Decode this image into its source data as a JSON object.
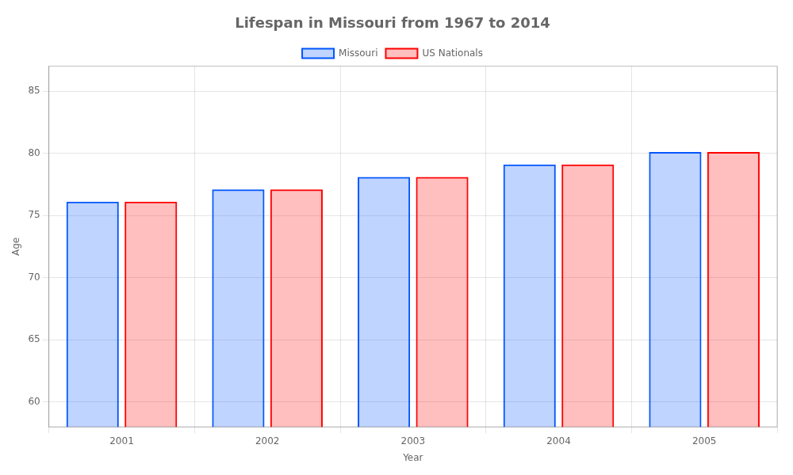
{
  "chart_data": {
    "type": "bar",
    "title": "Lifespan in Missouri from 1967 to 2014",
    "xlabel": "Year",
    "ylabel": "Age",
    "categories": [
      "2001",
      "2002",
      "2003",
      "2004",
      "2005"
    ],
    "series": [
      {
        "name": "Missouri",
        "color": "#0055ff",
        "values": [
          76.1,
          77.1,
          78.1,
          79.1,
          80.1
        ]
      },
      {
        "name": "US Nationals",
        "color": "#ff0000",
        "values": [
          76.1,
          77.1,
          78.1,
          79.1,
          80.1
        ]
      }
    ],
    "ylim": [
      58,
      87
    ],
    "yticks": [
      60,
      65,
      70,
      75,
      80,
      85
    ],
    "grid": true,
    "legend": "top"
  }
}
